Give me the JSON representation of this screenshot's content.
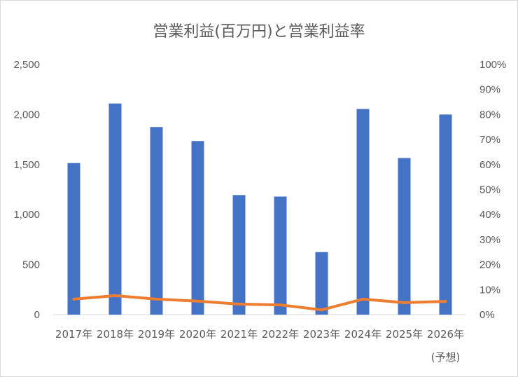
{
  "chart_data": {
    "type": "bar+line",
    "title": "営業利益(百万円)と営業利益率",
    "categories": [
      "2017年",
      "2018年",
      "2019年",
      "2020年",
      "2021年",
      "2022年",
      "2023年",
      "2024年",
      "2025年",
      "2026年"
    ],
    "category_note": "(予想)",
    "series": [
      {
        "type": "bar",
        "axis": "left",
        "color": "#4472C4",
        "values": [
          1515,
          2110,
          1875,
          1735,
          1195,
          1180,
          625,
          2055,
          1565,
          2000
        ]
      },
      {
        "type": "line",
        "axis": "right",
        "color": "#ED7D31",
        "values": [
          6.2,
          7.6,
          6.2,
          5.4,
          4.2,
          3.9,
          1.9,
          6.2,
          4.8,
          5.3
        ]
      }
    ],
    "y_left": {
      "min": 0,
      "max": 2500,
      "step": 500,
      "ticks": [
        "0",
        "500",
        "1,000",
        "1,500",
        "2,000",
        "2,500"
      ]
    },
    "y_right": {
      "min": 0,
      "max": 100,
      "step": 10,
      "ticks": [
        "0%",
        "10%",
        "20%",
        "30%",
        "40%",
        "50%",
        "60%",
        "70%",
        "80%",
        "90%",
        "100%"
      ]
    },
    "grid": false,
    "legend": "none"
  }
}
